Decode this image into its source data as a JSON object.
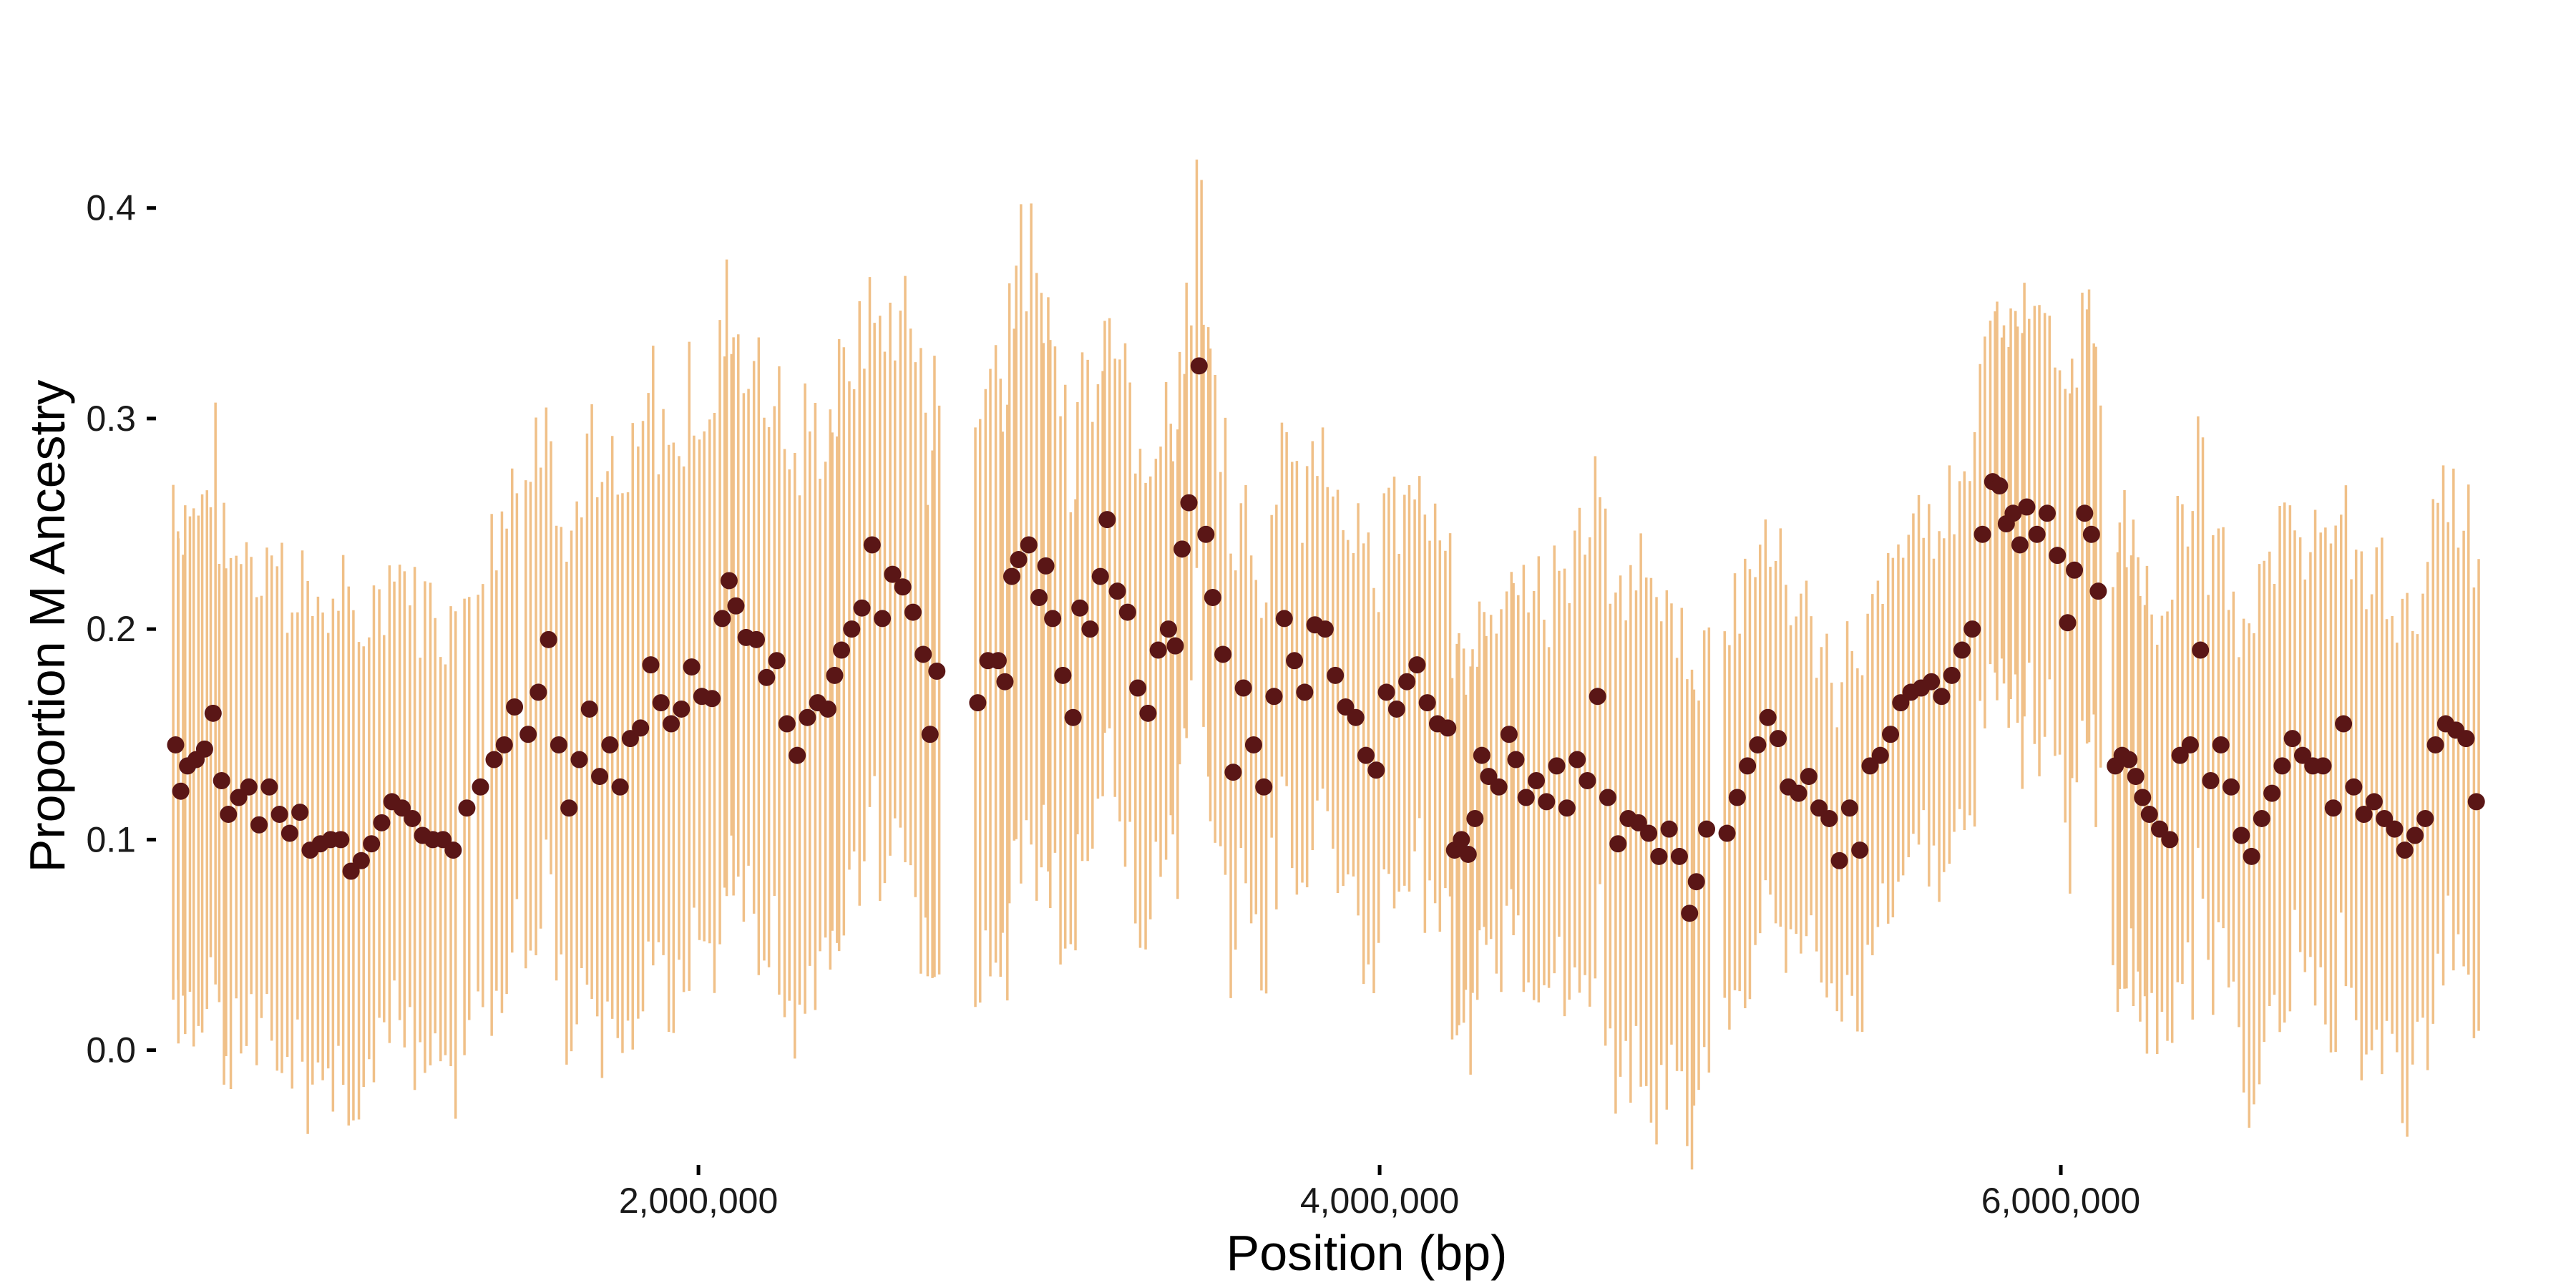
{
  "chart_data": {
    "type": "scatter",
    "title": "",
    "xlabel": "Position (bp)",
    "ylabel": "Proportion M Ancestry",
    "xlim": [
      380000,
      7250000
    ],
    "ylim": [
      -0.045,
      0.475
    ],
    "x_ticks": [
      {
        "value": 2000000,
        "label": "2,000,000"
      },
      {
        "value": 4000000,
        "label": "4,000,000"
      },
      {
        "value": 6000000,
        "label": "6,000,000"
      }
    ],
    "y_ticks": [
      {
        "value": 0.0,
        "label": "0.0"
      },
      {
        "value": 0.1,
        "label": "0.1"
      },
      {
        "value": 0.2,
        "label": "0.2"
      },
      {
        "value": 0.3,
        "label": "0.3"
      },
      {
        "value": 0.4,
        "label": "0.4"
      }
    ],
    "grid": false,
    "legend": false,
    "colors": {
      "point": "#5a1616",
      "errorbar": "#f0c088",
      "text": "#1a1a1a"
    },
    "error_halfwidth": {
      "x": [
        450000,
        900000,
        1300000,
        1500000,
        1950000,
        2100000,
        2300000,
        2500000,
        2900000,
        3200000,
        3600000,
        3900000,
        4300000,
        4600000,
        4800000,
        5000000,
        5300000,
        5600000,
        6000000,
        6300000,
        6700000,
        7000000,
        7200000
      ],
      "y": [
        0.12,
        0.11,
        0.105,
        0.115,
        0.13,
        0.13,
        0.13,
        0.12,
        0.14,
        0.11,
        0.09,
        0.09,
        0.08,
        0.1,
        0.12,
        0.095,
        0.075,
        0.075,
        0.1,
        0.1,
        0.105,
        0.11,
        0.1
      ]
    },
    "series": [
      {
        "name": "",
        "points": [
          [
            465000,
            0.145
          ],
          [
            480000,
            0.123
          ],
          [
            500000,
            0.135
          ],
          [
            525000,
            0.138
          ],
          [
            550000,
            0.143
          ],
          [
            575000,
            0.16
          ],
          [
            600000,
            0.128
          ],
          [
            620000,
            0.112
          ],
          [
            650000,
            0.12
          ],
          [
            680000,
            0.125
          ],
          [
            710000,
            0.107
          ],
          [
            740000,
            0.125
          ],
          [
            770000,
            0.112
          ],
          [
            800000,
            0.103
          ],
          [
            830000,
            0.113
          ],
          [
            860000,
            0.095
          ],
          [
            890000,
            0.098
          ],
          [
            920000,
            0.1
          ],
          [
            950000,
            0.1
          ],
          [
            980000,
            0.085
          ],
          [
            1010000,
            0.09
          ],
          [
            1040000,
            0.098
          ],
          [
            1070000,
            0.108
          ],
          [
            1100000,
            0.118
          ],
          [
            1130000,
            0.115
          ],
          [
            1160000,
            0.11
          ],
          [
            1190000,
            0.102
          ],
          [
            1220000,
            0.1
          ],
          [
            1250000,
            0.1
          ],
          [
            1280000,
            0.095
          ],
          [
            1320000,
            0.115
          ],
          [
            1360000,
            0.125
          ],
          [
            1400000,
            0.138
          ],
          [
            1430000,
            0.145
          ],
          [
            1460000,
            0.163
          ],
          [
            1500000,
            0.15
          ],
          [
            1530000,
            0.17
          ],
          [
            1560000,
            0.195
          ],
          [
            1590000,
            0.145
          ],
          [
            1620000,
            0.115
          ],
          [
            1650000,
            0.138
          ],
          [
            1680000,
            0.162
          ],
          [
            1710000,
            0.13
          ],
          [
            1740000,
            0.145
          ],
          [
            1770000,
            0.125
          ],
          [
            1800000,
            0.148
          ],
          [
            1830000,
            0.153
          ],
          [
            1860000,
            0.183
          ],
          [
            1890000,
            0.165
          ],
          [
            1920000,
            0.155
          ],
          [
            1950000,
            0.162
          ],
          [
            1980000,
            0.182
          ],
          [
            2010000,
            0.168
          ],
          [
            2040000,
            0.167
          ],
          [
            2070000,
            0.205
          ],
          [
            2090000,
            0.223
          ],
          [
            2110000,
            0.211
          ],
          [
            2140000,
            0.196
          ],
          [
            2170000,
            0.195
          ],
          [
            2200000,
            0.177
          ],
          [
            2230000,
            0.185
          ],
          [
            2260000,
            0.155
          ],
          [
            2290000,
            0.14
          ],
          [
            2320000,
            0.158
          ],
          [
            2350000,
            0.165
          ],
          [
            2380000,
            0.162
          ],
          [
            2400000,
            0.178
          ],
          [
            2420000,
            0.19
          ],
          [
            2450000,
            0.2
          ],
          [
            2480000,
            0.21
          ],
          [
            2510000,
            0.24
          ],
          [
            2540000,
            0.205
          ],
          [
            2570000,
            0.226
          ],
          [
            2600000,
            0.22
          ],
          [
            2630000,
            0.208
          ],
          [
            2660000,
            0.188
          ],
          [
            2680000,
            0.15
          ],
          [
            2700000,
            0.18
          ],
          [
            2820000,
            0.165
          ],
          [
            2850000,
            0.185
          ],
          [
            2880000,
            0.185
          ],
          [
            2900000,
            0.175
          ],
          [
            2920000,
            0.225
          ],
          [
            2940000,
            0.233
          ],
          [
            2970000,
            0.24
          ],
          [
            3000000,
            0.215
          ],
          [
            3020000,
            0.23
          ],
          [
            3040000,
            0.205
          ],
          [
            3070000,
            0.178
          ],
          [
            3100000,
            0.158
          ],
          [
            3120000,
            0.21
          ],
          [
            3150000,
            0.2
          ],
          [
            3180000,
            0.225
          ],
          [
            3200000,
            0.252
          ],
          [
            3230000,
            0.218
          ],
          [
            3260000,
            0.208
          ],
          [
            3290000,
            0.172
          ],
          [
            3320000,
            0.16
          ],
          [
            3350000,
            0.19
          ],
          [
            3380000,
            0.2
          ],
          [
            3400000,
            0.192
          ],
          [
            3420000,
            0.238
          ],
          [
            3440000,
            0.26
          ],
          [
            3470000,
            0.325
          ],
          [
            3490000,
            0.245
          ],
          [
            3510000,
            0.215
          ],
          [
            3540000,
            0.188
          ],
          [
            3570000,
            0.132
          ],
          [
            3600000,
            0.172
          ],
          [
            3630000,
            0.145
          ],
          [
            3660000,
            0.125
          ],
          [
            3690000,
            0.168
          ],
          [
            3720000,
            0.205
          ],
          [
            3750000,
            0.185
          ],
          [
            3780000,
            0.17
          ],
          [
            3810000,
            0.202
          ],
          [
            3840000,
            0.2
          ],
          [
            3870000,
            0.178
          ],
          [
            3900000,
            0.163
          ],
          [
            3930000,
            0.158
          ],
          [
            3960000,
            0.14
          ],
          [
            3990000,
            0.133
          ],
          [
            4020000,
            0.17
          ],
          [
            4050000,
            0.162
          ],
          [
            4080000,
            0.175
          ],
          [
            4110000,
            0.183
          ],
          [
            4140000,
            0.165
          ],
          [
            4170000,
            0.155
          ],
          [
            4200000,
            0.153
          ],
          [
            4220000,
            0.095
          ],
          [
            4240000,
            0.1
          ],
          [
            4260000,
            0.093
          ],
          [
            4280000,
            0.11
          ],
          [
            4300000,
            0.14
          ],
          [
            4320000,
            0.13
          ],
          [
            4350000,
            0.125
          ],
          [
            4380000,
            0.15
          ],
          [
            4400000,
            0.138
          ],
          [
            4430000,
            0.12
          ],
          [
            4460000,
            0.128
          ],
          [
            4490000,
            0.118
          ],
          [
            4520000,
            0.135
          ],
          [
            4550000,
            0.115
          ],
          [
            4580000,
            0.138
          ],
          [
            4610000,
            0.128
          ],
          [
            4640000,
            0.168
          ],
          [
            4670000,
            0.12
          ],
          [
            4700000,
            0.098
          ],
          [
            4730000,
            0.11
          ],
          [
            4760000,
            0.108
          ],
          [
            4790000,
            0.103
          ],
          [
            4820000,
            0.092
          ],
          [
            4850000,
            0.105
          ],
          [
            4880000,
            0.092
          ],
          [
            4910000,
            0.065
          ],
          [
            4930000,
            0.08
          ],
          [
            4960000,
            0.105
          ],
          [
            5020000,
            0.103
          ],
          [
            5050000,
            0.12
          ],
          [
            5080000,
            0.135
          ],
          [
            5110000,
            0.145
          ],
          [
            5140000,
            0.158
          ],
          [
            5170000,
            0.148
          ],
          [
            5200000,
            0.125
          ],
          [
            5230000,
            0.122
          ],
          [
            5260000,
            0.13
          ],
          [
            5290000,
            0.115
          ],
          [
            5320000,
            0.11
          ],
          [
            5350000,
            0.09
          ],
          [
            5380000,
            0.115
          ],
          [
            5410000,
            0.095
          ],
          [
            5440000,
            0.135
          ],
          [
            5470000,
            0.14
          ],
          [
            5500000,
            0.15
          ],
          [
            5530000,
            0.165
          ],
          [
            5560000,
            0.17
          ],
          [
            5590000,
            0.172
          ],
          [
            5620000,
            0.175
          ],
          [
            5650000,
            0.168
          ],
          [
            5680000,
            0.178
          ],
          [
            5710000,
            0.19
          ],
          [
            5740000,
            0.2
          ],
          [
            5770000,
            0.245
          ],
          [
            5800000,
            0.27
          ],
          [
            5820000,
            0.268
          ],
          [
            5840000,
            0.25
          ],
          [
            5860000,
            0.255
          ],
          [
            5880000,
            0.24
          ],
          [
            5900000,
            0.258
          ],
          [
            5930000,
            0.245
          ],
          [
            5960000,
            0.255
          ],
          [
            5990000,
            0.235
          ],
          [
            6020000,
            0.203
          ],
          [
            6040000,
            0.228
          ],
          [
            6070000,
            0.255
          ],
          [
            6090000,
            0.245
          ],
          [
            6110000,
            0.218
          ],
          [
            6160000,
            0.135
          ],
          [
            6180000,
            0.14
          ],
          [
            6200000,
            0.138
          ],
          [
            6220000,
            0.13
          ],
          [
            6240000,
            0.12
          ],
          [
            6260000,
            0.112
          ],
          [
            6290000,
            0.105
          ],
          [
            6320000,
            0.1
          ],
          [
            6350000,
            0.14
          ],
          [
            6380000,
            0.145
          ],
          [
            6410000,
            0.19
          ],
          [
            6440000,
            0.128
          ],
          [
            6470000,
            0.145
          ],
          [
            6500000,
            0.125
          ],
          [
            6530000,
            0.102
          ],
          [
            6560000,
            0.092
          ],
          [
            6590000,
            0.11
          ],
          [
            6620000,
            0.122
          ],
          [
            6650000,
            0.135
          ],
          [
            6680000,
            0.148
          ],
          [
            6710000,
            0.14
          ],
          [
            6740000,
            0.135
          ],
          [
            6770000,
            0.135
          ],
          [
            6800000,
            0.115
          ],
          [
            6830000,
            0.155
          ],
          [
            6860000,
            0.125
          ],
          [
            6890000,
            0.112
          ],
          [
            6920000,
            0.118
          ],
          [
            6950000,
            0.11
          ],
          [
            6980000,
            0.105
          ],
          [
            7010000,
            0.095
          ],
          [
            7040000,
            0.102
          ],
          [
            7070000,
            0.11
          ],
          [
            7100000,
            0.145
          ],
          [
            7130000,
            0.155
          ],
          [
            7160000,
            0.152
          ],
          [
            7190000,
            0.148
          ],
          [
            7220000,
            0.118
          ]
        ]
      }
    ]
  }
}
